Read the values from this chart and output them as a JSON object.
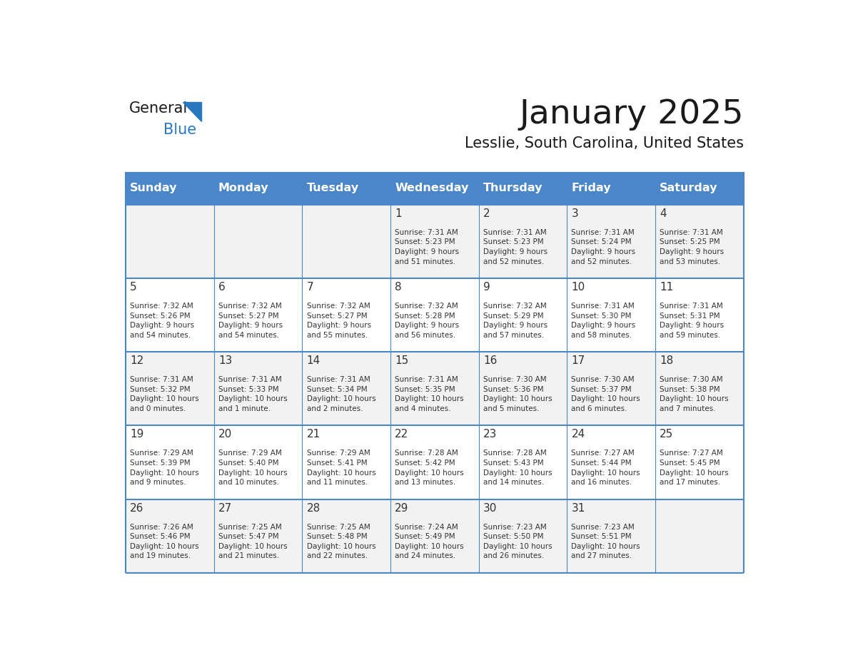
{
  "title": "January 2025",
  "subtitle": "Lesslie, South Carolina, United States",
  "days_of_week": [
    "Sunday",
    "Monday",
    "Tuesday",
    "Wednesday",
    "Thursday",
    "Friday",
    "Saturday"
  ],
  "header_bg": "#4A86C8",
  "header_text_color": "#FFFFFF",
  "cell_bg_even": "#F2F2F2",
  "cell_bg_odd": "#FFFFFF",
  "border_color": "#4A86C8",
  "text_color": "#333333",
  "title_color": "#1a1a1a",
  "subtitle_color": "#1a1a1a",
  "logo_general_color": "#1a1a1a",
  "logo_blue_color": "#2878C0",
  "logo_triangle_color": "#2878C0",
  "weeks": [
    [
      {
        "day": "",
        "text": ""
      },
      {
        "day": "",
        "text": ""
      },
      {
        "day": "",
        "text": ""
      },
      {
        "day": "1",
        "text": "Sunrise: 7:31 AM\nSunset: 5:23 PM\nDaylight: 9 hours\nand 51 minutes."
      },
      {
        "day": "2",
        "text": "Sunrise: 7:31 AM\nSunset: 5:23 PM\nDaylight: 9 hours\nand 52 minutes."
      },
      {
        "day": "3",
        "text": "Sunrise: 7:31 AM\nSunset: 5:24 PM\nDaylight: 9 hours\nand 52 minutes."
      },
      {
        "day": "4",
        "text": "Sunrise: 7:31 AM\nSunset: 5:25 PM\nDaylight: 9 hours\nand 53 minutes."
      }
    ],
    [
      {
        "day": "5",
        "text": "Sunrise: 7:32 AM\nSunset: 5:26 PM\nDaylight: 9 hours\nand 54 minutes."
      },
      {
        "day": "6",
        "text": "Sunrise: 7:32 AM\nSunset: 5:27 PM\nDaylight: 9 hours\nand 54 minutes."
      },
      {
        "day": "7",
        "text": "Sunrise: 7:32 AM\nSunset: 5:27 PM\nDaylight: 9 hours\nand 55 minutes."
      },
      {
        "day": "8",
        "text": "Sunrise: 7:32 AM\nSunset: 5:28 PM\nDaylight: 9 hours\nand 56 minutes."
      },
      {
        "day": "9",
        "text": "Sunrise: 7:32 AM\nSunset: 5:29 PM\nDaylight: 9 hours\nand 57 minutes."
      },
      {
        "day": "10",
        "text": "Sunrise: 7:31 AM\nSunset: 5:30 PM\nDaylight: 9 hours\nand 58 minutes."
      },
      {
        "day": "11",
        "text": "Sunrise: 7:31 AM\nSunset: 5:31 PM\nDaylight: 9 hours\nand 59 minutes."
      }
    ],
    [
      {
        "day": "12",
        "text": "Sunrise: 7:31 AM\nSunset: 5:32 PM\nDaylight: 10 hours\nand 0 minutes."
      },
      {
        "day": "13",
        "text": "Sunrise: 7:31 AM\nSunset: 5:33 PM\nDaylight: 10 hours\nand 1 minute."
      },
      {
        "day": "14",
        "text": "Sunrise: 7:31 AM\nSunset: 5:34 PM\nDaylight: 10 hours\nand 2 minutes."
      },
      {
        "day": "15",
        "text": "Sunrise: 7:31 AM\nSunset: 5:35 PM\nDaylight: 10 hours\nand 4 minutes."
      },
      {
        "day": "16",
        "text": "Sunrise: 7:30 AM\nSunset: 5:36 PM\nDaylight: 10 hours\nand 5 minutes."
      },
      {
        "day": "17",
        "text": "Sunrise: 7:30 AM\nSunset: 5:37 PM\nDaylight: 10 hours\nand 6 minutes."
      },
      {
        "day": "18",
        "text": "Sunrise: 7:30 AM\nSunset: 5:38 PM\nDaylight: 10 hours\nand 7 minutes."
      }
    ],
    [
      {
        "day": "19",
        "text": "Sunrise: 7:29 AM\nSunset: 5:39 PM\nDaylight: 10 hours\nand 9 minutes."
      },
      {
        "day": "20",
        "text": "Sunrise: 7:29 AM\nSunset: 5:40 PM\nDaylight: 10 hours\nand 10 minutes."
      },
      {
        "day": "21",
        "text": "Sunrise: 7:29 AM\nSunset: 5:41 PM\nDaylight: 10 hours\nand 11 minutes."
      },
      {
        "day": "22",
        "text": "Sunrise: 7:28 AM\nSunset: 5:42 PM\nDaylight: 10 hours\nand 13 minutes."
      },
      {
        "day": "23",
        "text": "Sunrise: 7:28 AM\nSunset: 5:43 PM\nDaylight: 10 hours\nand 14 minutes."
      },
      {
        "day": "24",
        "text": "Sunrise: 7:27 AM\nSunset: 5:44 PM\nDaylight: 10 hours\nand 16 minutes."
      },
      {
        "day": "25",
        "text": "Sunrise: 7:27 AM\nSunset: 5:45 PM\nDaylight: 10 hours\nand 17 minutes."
      }
    ],
    [
      {
        "day": "26",
        "text": "Sunrise: 7:26 AM\nSunset: 5:46 PM\nDaylight: 10 hours\nand 19 minutes."
      },
      {
        "day": "27",
        "text": "Sunrise: 7:25 AM\nSunset: 5:47 PM\nDaylight: 10 hours\nand 21 minutes."
      },
      {
        "day": "28",
        "text": "Sunrise: 7:25 AM\nSunset: 5:48 PM\nDaylight: 10 hours\nand 22 minutes."
      },
      {
        "day": "29",
        "text": "Sunrise: 7:24 AM\nSunset: 5:49 PM\nDaylight: 10 hours\nand 24 minutes."
      },
      {
        "day": "30",
        "text": "Sunrise: 7:23 AM\nSunset: 5:50 PM\nDaylight: 10 hours\nand 26 minutes."
      },
      {
        "day": "31",
        "text": "Sunrise: 7:23 AM\nSunset: 5:51 PM\nDaylight: 10 hours\nand 27 minutes."
      },
      {
        "day": "",
        "text": ""
      }
    ]
  ]
}
